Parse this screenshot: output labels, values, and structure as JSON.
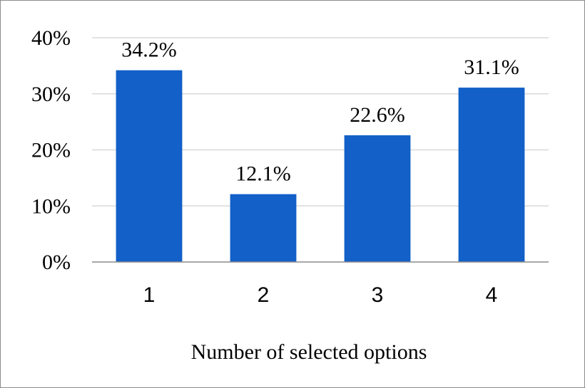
{
  "chart_data": {
    "type": "bar",
    "categories": [
      "1",
      "2",
      "3",
      "4"
    ],
    "values": [
      34.2,
      12.1,
      22.6,
      31.1
    ],
    "data_labels": [
      "34.2%",
      "12.1%",
      "22.6%",
      "31.1%"
    ],
    "xlabel": "Number of selected options",
    "ylabel": "",
    "ylim": [
      0,
      40
    ],
    "yticks": [
      0,
      10,
      20,
      30,
      40
    ],
    "ytick_labels": [
      "0%",
      "10%",
      "20%",
      "30%",
      "40%"
    ],
    "grid": true,
    "legend": "none",
    "colors": {
      "bar": "#1260c8",
      "grid": "#d9d9d9",
      "axis": "#8c8c8c"
    }
  }
}
